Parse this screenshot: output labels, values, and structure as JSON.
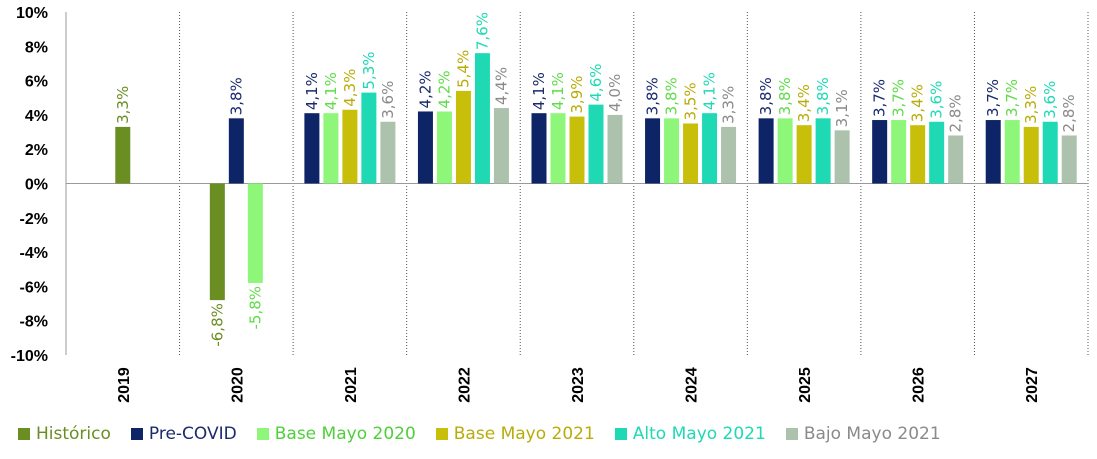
{
  "chart_data": {
    "type": "bar",
    "categories": [
      "2019",
      "2020",
      "2021",
      "2022",
      "2023",
      "2024",
      "2025",
      "2026",
      "2027"
    ],
    "ylim": [
      -10,
      10
    ],
    "yticks": [
      -10,
      -8,
      -6,
      -4,
      -2,
      0,
      2,
      4,
      6,
      8,
      10
    ],
    "ytick_labels": [
      "-10%",
      "-8%",
      "-6%",
      "-4%",
      "-2%",
      "0%",
      "2%",
      "4%",
      "6%",
      "8%",
      "10%"
    ],
    "gridlines": false,
    "legend_position": "bottom",
    "series": [
      {
        "name": "Histórico",
        "color": "#6b8e23",
        "values": [
          3.3,
          -6.8,
          null,
          null,
          null,
          null,
          null,
          null,
          null
        ],
        "labels": [
          "3,3%",
          "-6,8%",
          null,
          null,
          null,
          null,
          null,
          null,
          null
        ]
      },
      {
        "name": "Pre-COVID",
        "color": "#0d2466",
        "values": [
          null,
          3.8,
          4.1,
          4.2,
          4.1,
          3.8,
          3.8,
          3.7,
          3.7
        ],
        "labels": [
          null,
          "3,8%",
          "4,1%",
          "4,2%",
          "4,1%",
          "3,8%",
          "3,8%",
          "3,7%",
          "3,7%"
        ]
      },
      {
        "name": "Base Mayo 2020",
        "color": "#8ef77a",
        "values": [
          null,
          -5.8,
          4.1,
          4.2,
          4.1,
          3.8,
          3.8,
          3.7,
          3.7
        ],
        "labels": [
          null,
          "-5,8%",
          "4,1%",
          "4,2%",
          "4,1%",
          "3,8%",
          "3,8%",
          "3,7%",
          "3,7%"
        ]
      },
      {
        "name": "Base Mayo 2021",
        "color": "#c8bf0a",
        "values": [
          null,
          null,
          4.3,
          5.4,
          3.9,
          3.5,
          3.4,
          3.4,
          3.3
        ],
        "labels": [
          null,
          null,
          "4,3%",
          "5,4%",
          "3,9%",
          "3,5%",
          "3,4%",
          "3,4%",
          "3,3%"
        ]
      },
      {
        "name": "Alto Mayo 2021",
        "color": "#1fd9b4",
        "values": [
          null,
          null,
          5.3,
          7.6,
          4.6,
          4.1,
          3.8,
          3.6,
          3.6
        ],
        "labels": [
          null,
          null,
          "5,3%",
          "7,6%",
          "4,6%",
          "4,1%",
          "3,8%",
          "3,6%",
          "3,6%"
        ]
      },
      {
        "name": "Bajo Mayo 2021",
        "color": "#adc2ad",
        "values": [
          null,
          null,
          3.6,
          4.4,
          4.0,
          3.3,
          3.1,
          2.8,
          2.8
        ],
        "labels": [
          null,
          null,
          "3,6%",
          "4,4%",
          "4,0%",
          "3,3%",
          "3,1%",
          "2,8%",
          "2,8%"
        ]
      }
    ],
    "label_colors": {
      "Histórico": "#6b8e23",
      "Pre-COVID": "#1a2a6c",
      "Base Mayo 2020": "#5fdc4a",
      "Base Mayo 2021": "#b8ac0a",
      "Alto Mayo 2021": "#1fd9b4",
      "Bajo Mayo 2021": "#8a8a8a"
    },
    "legend_text_colors": {
      "Histórico": "#6b8e23",
      "Pre-COVID": "#1a2a6c",
      "Base Mayo 2020": "#4fcf3a",
      "Base Mayo 2021": "#b8ac0a",
      "Alto Mayo 2021": "#1fd9b4",
      "Bajo Mayo 2021": "#8a8a8a"
    }
  }
}
